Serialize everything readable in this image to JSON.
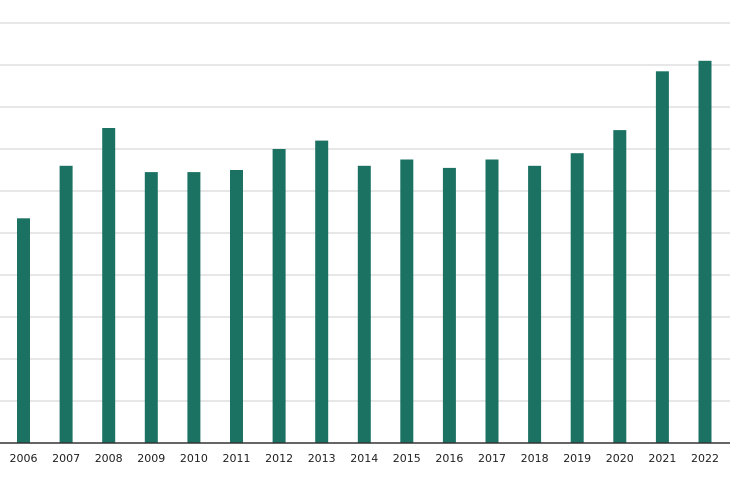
{
  "chart_data": {
    "type": "bar",
    "categories": [
      "2006",
      "2007",
      "2008",
      "2009",
      "2010",
      "2011",
      "2012",
      "2013",
      "2014",
      "2015",
      "2016",
      "2017",
      "2018",
      "2019",
      "2020",
      "2021",
      "2022"
    ],
    "values": [
      5.35,
      6.6,
      7.5,
      6.45,
      6.45,
      6.5,
      7.0,
      7.2,
      6.6,
      6.75,
      6.55,
      6.75,
      6.6,
      6.9,
      7.45,
      8.85,
      9.1
    ],
    "title": "",
    "xlabel": "",
    "ylabel": "",
    "ylim": [
      0,
      10
    ],
    "ygrid_step": 1,
    "grid": true,
    "legend": "none",
    "colors": {
      "bar": "#1b7263",
      "grid": "#cfcfcf",
      "axis": "#333333"
    }
  }
}
